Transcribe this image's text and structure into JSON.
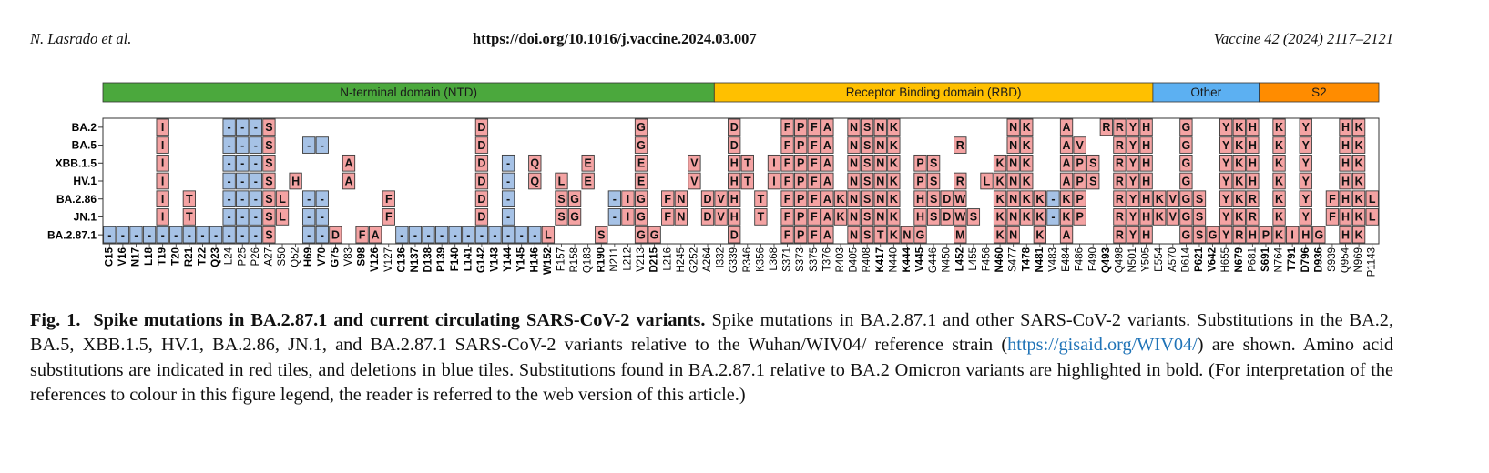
{
  "header": {
    "authors": "N. Lasrado et al.",
    "doi": "https://doi.org/10.1016/j.vaccine.2024.03.007",
    "journal": "Vaccine 42 (2024) 2117–2121"
  },
  "figure": {
    "domains": [
      {
        "label": "N-terminal domain (NTD)",
        "color": "#4ba83d",
        "positions": [
          "C15",
          "V16",
          "N17",
          "L18",
          "T19",
          "T20",
          "R21",
          "T22",
          "Q23",
          "L24",
          "P25",
          "P26",
          "A27",
          "S50",
          "Q52",
          "H69",
          "V70",
          "G75",
          "V83",
          "S98",
          "V126",
          "V127",
          "C136",
          "N137",
          "D138",
          "P139",
          "F140",
          "L141",
          "G142",
          "V143",
          "Y144",
          "Y145",
          "H146",
          "W152",
          "F157",
          "R158",
          "Q183",
          "R190",
          "N211",
          "L212",
          "V213",
          "D215",
          "L216",
          "H245",
          "G252",
          "A264"
        ]
      },
      {
        "label": "Receptor Binding domain (RBD)",
        "color": "#ffc000",
        "positions": [
          "I332",
          "G339",
          "R346",
          "K356",
          "L368",
          "S371",
          "S373",
          "S375",
          "T376",
          "R403",
          "D405",
          "R408",
          "K417",
          "N440",
          "K444",
          "V445",
          "G446",
          "N450",
          "L452",
          "L455",
          "F456",
          "N460",
          "S477",
          "T478",
          "N481",
          "V483",
          "E484",
          "F486",
          "F490",
          "Q493",
          "Q498",
          "N501",
          "Y505"
        ]
      },
      {
        "label": "Other",
        "color": "#5cb0f2",
        "positions": [
          "E554",
          "A570",
          "D614",
          "P621",
          "V642",
          "H655",
          "N679",
          "P681"
        ]
      },
      {
        "label": "S2",
        "color": "#ff8c00",
        "positions": [
          "S691",
          "N764",
          "T791",
          "D796",
          "D936",
          "S939",
          "Q954",
          "N969",
          "P1143"
        ]
      }
    ],
    "tile_colors": {
      "substitution": "#f4a3a3",
      "deletion": "#a6c2e6"
    },
    "variants": [
      {
        "name": "BA.2",
        "cells": [
          null,
          null,
          null,
          null,
          "I",
          null,
          null,
          null,
          null,
          "-",
          "-",
          "-",
          "S",
          null,
          null,
          null,
          null,
          null,
          null,
          null,
          null,
          null,
          null,
          null,
          null,
          null,
          null,
          null,
          "D",
          null,
          null,
          null,
          null,
          null,
          null,
          null,
          null,
          null,
          null,
          null,
          "G",
          null,
          null,
          null,
          null,
          null,
          null,
          "D",
          null,
          null,
          null,
          "F",
          "P",
          "F",
          "A",
          null,
          "N",
          "S",
          "N",
          "K",
          null,
          null,
          null,
          null,
          null,
          null,
          null,
          null,
          "N",
          "K",
          null,
          null,
          "A",
          null,
          null,
          "R",
          "R",
          "Y",
          "H",
          null,
          null,
          "G",
          null,
          null,
          "Y",
          "K",
          "H",
          null,
          "K",
          null,
          "Y",
          null,
          null,
          "H",
          "K",
          null
        ]
      },
      {
        "name": "BA.5",
        "cells": [
          null,
          null,
          null,
          null,
          "I",
          null,
          null,
          null,
          null,
          "-",
          "-",
          "-",
          "S",
          null,
          null,
          "-",
          "-",
          null,
          null,
          null,
          null,
          null,
          null,
          null,
          null,
          null,
          null,
          null,
          "D",
          null,
          null,
          null,
          null,
          null,
          null,
          null,
          null,
          null,
          null,
          null,
          "G",
          null,
          null,
          null,
          null,
          null,
          null,
          "D",
          null,
          null,
          null,
          "F",
          "P",
          "F",
          "A",
          null,
          "N",
          "S",
          "N",
          "K",
          null,
          null,
          null,
          null,
          "R",
          null,
          null,
          null,
          "N",
          "K",
          null,
          null,
          "A",
          "V",
          null,
          null,
          "R",
          "Y",
          "H",
          null,
          null,
          "G",
          null,
          null,
          "Y",
          "K",
          "H",
          null,
          "K",
          null,
          "Y",
          null,
          null,
          "H",
          "K",
          null
        ]
      },
      {
        "name": "XBB.1.5",
        "cells": [
          null,
          null,
          null,
          null,
          "I",
          null,
          null,
          null,
          null,
          "-",
          "-",
          "-",
          "S",
          null,
          null,
          null,
          null,
          null,
          "A",
          null,
          null,
          null,
          null,
          null,
          null,
          null,
          null,
          null,
          "D",
          null,
          "-",
          null,
          "Q",
          null,
          null,
          null,
          "E",
          null,
          null,
          null,
          "E",
          null,
          null,
          null,
          "V",
          null,
          null,
          "H",
          "T",
          null,
          "I",
          "F",
          "P",
          "F",
          "A",
          null,
          "N",
          "S",
          "N",
          "K",
          null,
          "P",
          "S",
          null,
          null,
          null,
          null,
          "K",
          "N",
          "K",
          null,
          null,
          "A",
          "P",
          "S",
          null,
          "R",
          "Y",
          "H",
          null,
          null,
          "G",
          null,
          null,
          "Y",
          "K",
          "H",
          null,
          "K",
          null,
          "Y",
          null,
          null,
          "H",
          "K",
          null
        ]
      },
      {
        "name": "HV.1",
        "cells": [
          null,
          null,
          null,
          null,
          "I",
          null,
          null,
          null,
          null,
          "-",
          "-",
          "-",
          "S",
          null,
          "H",
          null,
          null,
          null,
          "A",
          null,
          null,
          null,
          null,
          null,
          null,
          null,
          null,
          null,
          "D",
          null,
          "-",
          null,
          "Q",
          null,
          "L",
          null,
          "E",
          null,
          null,
          null,
          "E",
          null,
          null,
          null,
          "V",
          null,
          null,
          "H",
          "T",
          null,
          "I",
          "F",
          "P",
          "F",
          "A",
          null,
          "N",
          "S",
          "N",
          "K",
          null,
          "P",
          "S",
          null,
          "R",
          null,
          "L",
          "K",
          "N",
          "K",
          null,
          null,
          "A",
          "P",
          "S",
          null,
          "R",
          "Y",
          "H",
          null,
          null,
          "G",
          null,
          null,
          "Y",
          "K",
          "H",
          null,
          "K",
          null,
          "Y",
          null,
          null,
          "H",
          "K",
          null
        ]
      },
      {
        "name": "BA.2.86",
        "cells": [
          null,
          null,
          null,
          null,
          "I",
          null,
          "T",
          null,
          null,
          "-",
          "-",
          "-",
          "S",
          "L",
          null,
          "-",
          "-",
          null,
          null,
          null,
          null,
          "F",
          null,
          null,
          null,
          null,
          null,
          null,
          "D",
          null,
          "-",
          null,
          null,
          null,
          "S",
          "G",
          null,
          null,
          "-",
          "I",
          "G",
          null,
          "F",
          "N",
          null,
          "D",
          "V",
          "H",
          null,
          "T",
          null,
          "F",
          "P",
          "F",
          "A",
          "K",
          "N",
          "S",
          "N",
          "K",
          null,
          "H",
          "S",
          "D",
          "W",
          null,
          null,
          "K",
          "N",
          "K",
          "K",
          "-",
          "K",
          "P",
          null,
          null,
          "R",
          "Y",
          "H",
          "K",
          "V",
          "G",
          "S",
          null,
          "Y",
          "K",
          "R",
          null,
          "K",
          null,
          "Y",
          null,
          "F",
          "H",
          "K",
          "L"
        ]
      },
      {
        "name": "JN.1",
        "cells": [
          null,
          null,
          null,
          null,
          "I",
          null,
          "T",
          null,
          null,
          "-",
          "-",
          "-",
          "S",
          "L",
          null,
          "-",
          "-",
          null,
          null,
          null,
          null,
          "F",
          null,
          null,
          null,
          null,
          null,
          null,
          "D",
          null,
          "-",
          null,
          null,
          null,
          "S",
          "G",
          null,
          null,
          "-",
          "I",
          "G",
          null,
          "F",
          "N",
          null,
          "D",
          "V",
          "H",
          null,
          "T",
          null,
          "F",
          "P",
          "F",
          "A",
          "K",
          "N",
          "S",
          "N",
          "K",
          null,
          "H",
          "S",
          "D",
          "W",
          "S",
          null,
          "K",
          "N",
          "K",
          "K",
          "-",
          "K",
          "P",
          null,
          null,
          "R",
          "Y",
          "H",
          "K",
          "V",
          "G",
          "S",
          null,
          "Y",
          "K",
          "R",
          null,
          "K",
          null,
          "Y",
          null,
          "F",
          "H",
          "K",
          "L"
        ]
      },
      {
        "name": "BA.2.87.1",
        "cells": [
          "-",
          "-",
          "-",
          "-",
          "-",
          "-",
          "-",
          "-",
          "-",
          "-",
          "-",
          "-",
          "S",
          null,
          null,
          "-",
          "-",
          "D",
          null,
          "F",
          "A",
          null,
          "-",
          "-",
          "-",
          "-",
          "-",
          "-",
          "-",
          "-",
          "-",
          "-",
          "-",
          "L",
          null,
          null,
          null,
          "S",
          null,
          null,
          "G",
          "G",
          null,
          null,
          null,
          null,
          null,
          "D",
          null,
          null,
          null,
          "F",
          "P",
          "F",
          "A",
          null,
          "N",
          "S",
          "T",
          "K",
          "N",
          "G",
          null,
          null,
          "M",
          null,
          null,
          "K",
          "N",
          null,
          "K",
          null,
          "A",
          null,
          null,
          null,
          "R",
          "Y",
          "H",
          null,
          null,
          "G",
          "S",
          "G",
          "Y",
          "R",
          "H",
          "P",
          "K",
          "I",
          "H",
          "G",
          null,
          "H",
          "K",
          null
        ]
      }
    ]
  },
  "caption": {
    "label": "Fig. 1.",
    "title": "Spike mutations in BA.2.87.1 and current circulating SARS-CoV-2 variants.",
    "text_before": "Spike mutations in BA.2.87.1 and other SARS-CoV-2 variants. Substitutions in the BA.2, BA.5, XBB.1.5, HV.1, BA.2.86, JN.1, and BA.2.87.1 SARS-CoV-2 variants relative to the Wuhan/WIV04/ reference strain (",
    "link": "https://gisaid.org/WIV04/",
    "text_after": ") are shown. Amino acid substitutions are indicated in red tiles, and deletions in blue tiles. Substitutions found in BA.2.87.1 relative to BA.2 Omicron variants are highlighted in bold. (For interpretation of the references to colour in this figure legend, the reader is referred to the web version of this article.)"
  }
}
